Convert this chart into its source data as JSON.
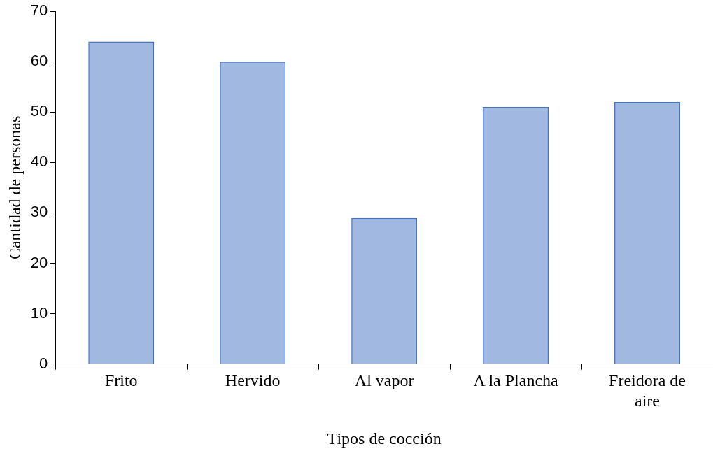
{
  "chart_data": {
    "type": "bar",
    "xlabel": "Tipos de cocción",
    "ylabel": "Cantidad de personas",
    "categories": [
      "Frito",
      "Hervido",
      "Al vapor",
      "A la Plancha",
      "Freidora de aire"
    ],
    "values": [
      64,
      60,
      29,
      51,
      52
    ],
    "color": "#4472c4",
    "ylim": [
      0,
      70
    ],
    "yticks": [
      0,
      10,
      20,
      30,
      40,
      50,
      60,
      70
    ],
    "grid": false,
    "legend": false
  }
}
